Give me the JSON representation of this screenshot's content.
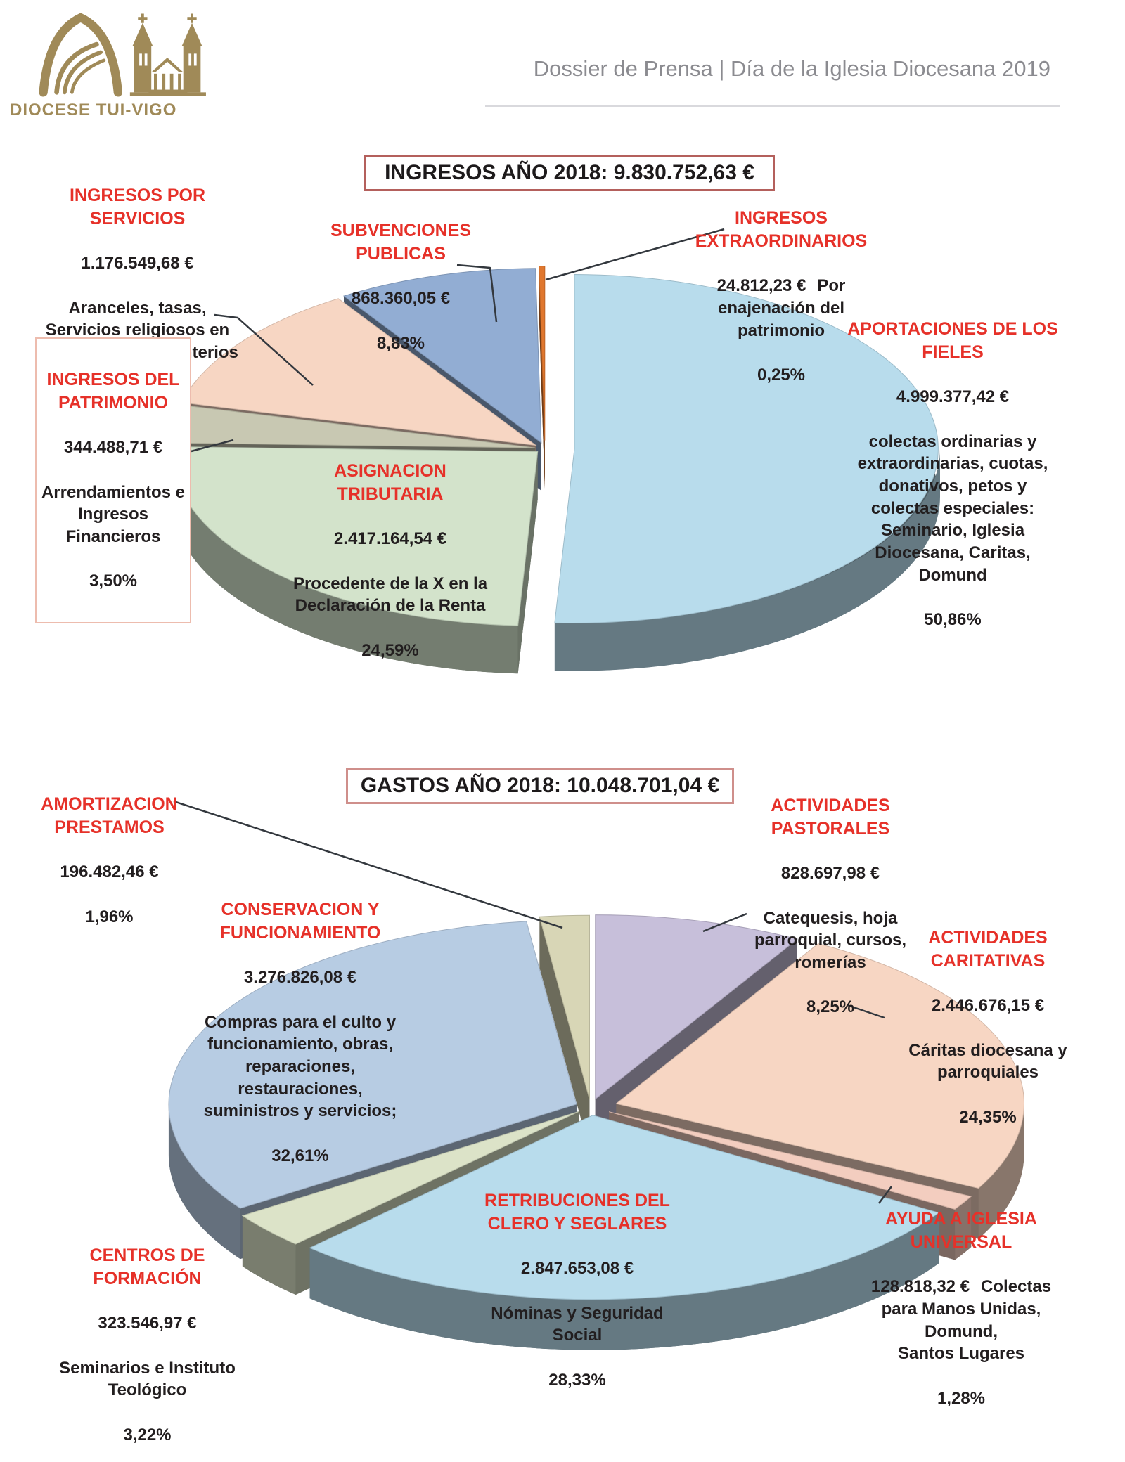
{
  "logo": {
    "text": "DIOCESE TUI-VIGO"
  },
  "header": {
    "title": "Dossier de Prensa | Día de la Iglesia Diocesana 2019"
  },
  "chart_data": [
    {
      "type": "pie",
      "style": "3d-exploded",
      "title": "INGRESOS AÑO 2018:  9.830.752,63 €",
      "total": "9.830.752,63 €",
      "year": "2018",
      "legend_position": "labels-around",
      "slices": [
        {
          "name": "APORTACIONES DE LOS\nFIELES",
          "value": "4.999.377,42 €",
          "desc": "colectas ordinarias y\nextraordinarias, cuotas,\ndonativos, petos y\ncolectas especiales:\nSeminario, Iglesia\nDiocesana, Caritas,\nDomund",
          "pct": 50.86,
          "pct_label": "50,86%",
          "color": "#b8dcec",
          "explode": 42
        },
        {
          "name": "ASIGNACION\nTRIBUTARIA",
          "value": "2.417.164,54 €",
          "desc": "Procedente de la X en la\nDeclaración de la Renta",
          "pct": 24.59,
          "pct_label": "24,59%",
          "color": "#d3e3cb",
          "explode": 14
        },
        {
          "name": "INGRESOS DEL\nPATRIMONIO",
          "value": "344.488,71 €",
          "desc": "Arrendamientos e\nIngresos\nFinancieros",
          "pct": 3.5,
          "pct_label": "3,50%",
          "color": "#c8c8b2",
          "explode": 14
        },
        {
          "name": "INGRESOS POR\nSERVICIOS",
          "value": "1.176.549,68 €",
          "desc": "Aranceles, tasas,\nServicios religiosos en\nhospitales y cementerios",
          "pct": 11.97,
          "pct_label": "11,97%",
          "color": "#f7d6c3",
          "explode": 16
        },
        {
          "name": "SUBVENCIONES\nPUBLICAS",
          "value": "868.360,05 €",
          "desc": "",
          "pct": 8.83,
          "pct_label": "8,83%",
          "color": "#92add3",
          "explode": 18
        },
        {
          "name": "INGRESOS\nEXTRAORDINARIOS",
          "value": "24.812,23 €",
          "desc": "Por\nenajenación del\npatrimonio",
          "pct": 0.25,
          "pct_label": "0,25%",
          "color": "#e0772e",
          "explode": 24
        }
      ]
    },
    {
      "type": "pie",
      "style": "3d-exploded",
      "title": "GASTOS AÑO 2018: 10.048.701,04 €",
      "total": "10.048.701,04 €",
      "year": "2018",
      "legend_position": "labels-around",
      "slices": [
        {
          "name": "ACTIVIDADES\nPASTORALES",
          "value": "828.697,98 €",
          "desc": "Catequesis, hoja\nparroquial, cursos,\nromerías",
          "pct": 8.25,
          "pct_label": "8,25%",
          "color": "#c7bfda",
          "explode": 26
        },
        {
          "name": "ACTIVIDADES\nCARITATIVAS",
          "value": "2.446.676,15 €",
          "desc": "Cáritas diocesana y\nparroquiales",
          "pct": 24.35,
          "pct_label": "24,35%",
          "color": "#f7d6c3",
          "explode": 38
        },
        {
          "name": "AYUDA A IGLESIA\nUNIVERSAL",
          "value": "128.818,32 €",
          "desc": "Colectas\npara Manos Unidas,\nDomund,\nSantos Lugares",
          "pct": 1.28,
          "pct_label": "1,28%",
          "color": "#f3cdbf",
          "explode": 30
        },
        {
          "name": "RETRIBUCIONES DEL\nCLERO Y SEGLARES",
          "value": "2.847.653,08 €",
          "desc": "Nóminas y Seguridad\nSocial",
          "pct": 28.33,
          "pct_label": "28,33%",
          "color": "#b8dcec",
          "explode": 26
        },
        {
          "name": "CENTROS DE\nFORMACIÓN",
          "value": "323.546,97 €",
          "desc": "Seminarios e Instituto\nTeológico",
          "pct": 3.22,
          "pct_label": "3,22%",
          "color": "#dce3c8",
          "explode": 22
        },
        {
          "name": "CONSERVACION Y\nFUNCIONAMIENTO",
          "value": "3.276.826,08 €",
          "desc": "Compras para el culto y\nfuncionamiento, obras,\nreparaciones,\nrestauraciones,\nsuministros y servicios;",
          "pct": 32.61,
          "pct_label": "32,61%",
          "color": "#b7cce3",
          "explode": 22
        },
        {
          "name": "AMORTIZACION\nPRESTAMOS",
          "value": "196.482,46 €",
          "desc": "",
          "pct": 1.96,
          "pct_label": "1,96%",
          "color": "#d8d6b6",
          "explode": 24
        }
      ]
    }
  ]
}
